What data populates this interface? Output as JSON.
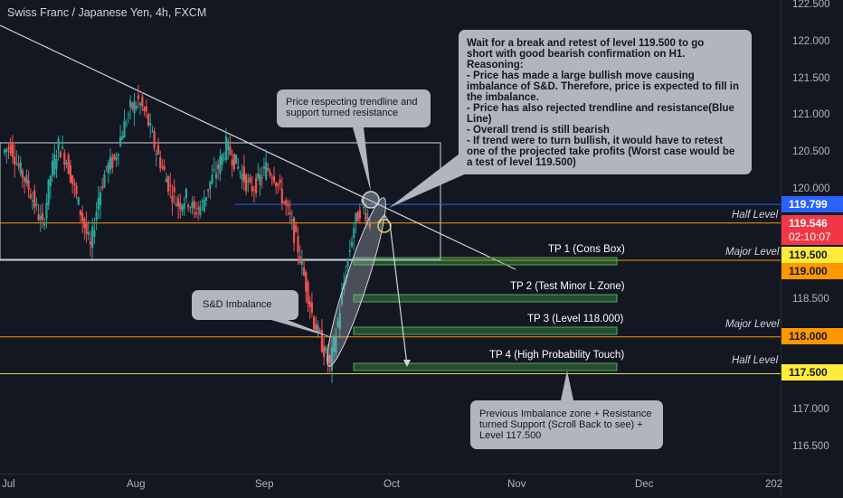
{
  "header": {
    "title": "Swiss Franc / Japanese Yen, 4h, FXCM"
  },
  "colors": {
    "background": "#131722",
    "up": "#26a69a",
    "down": "#ef5350",
    "orange": "#ff9800",
    "yellow": "#ffeb3b",
    "blue": "#2962ff",
    "green_box": "#4caf50"
  },
  "chart_data": {
    "type": "candlestick",
    "price_ticks": [
      "122.500",
      "122.000",
      "121.500",
      "121.000",
      "120.500",
      "120.000",
      "119.500",
      "119.000",
      "118.500",
      "118.000",
      "117.500",
      "117.000",
      "116.500"
    ],
    "time_ticks": [
      "Jul",
      "Aug",
      "Sep",
      "Oct",
      "Nov",
      "Dec",
      "202"
    ],
    "ylim": [
      116.3,
      122.55
    ],
    "x_range": {
      "start": "Jul",
      "end": "202"
    },
    "price_path": [
      120.5,
      120.6,
      120.3,
      120.1,
      119.8,
      119.5,
      120.2,
      120.6,
      120.4,
      120.0,
      119.6,
      119.2,
      119.9,
      120.3,
      120.4,
      120.8,
      121.1,
      121.2,
      121.0,
      120.6,
      120.3,
      120.0,
      119.8,
      119.9,
      119.7,
      119.8,
      120.1,
      120.3,
      120.6,
      120.4,
      120.2,
      120.0,
      120.1,
      120.3,
      120.2,
      119.9,
      119.6,
      119.2,
      118.7,
      118.2,
      117.9,
      117.6,
      118.2,
      118.9,
      119.5,
      119.8,
      119.55
    ],
    "horizontal_levels": [
      {
        "price": 119.799,
        "color": "blue"
      },
      {
        "price": 119.546,
        "color": "orange",
        "label": "Half Level"
      },
      {
        "price": 119.0,
        "color": "white"
      },
      {
        "price": 118.0,
        "color": "orange",
        "label": "Major Level"
      },
      {
        "price": 117.5,
        "color": "yellow",
        "label": "Half Level"
      }
    ],
    "price_badges": [
      {
        "text": "119.799",
        "bg": "#2962ff",
        "fg": "#ffffff"
      },
      {
        "text": "119.546",
        "bg": "#f23645",
        "fg": "#ffffff"
      },
      {
        "text": "02:10:07",
        "bg": "#f23645",
        "fg": "#ffffff"
      },
      {
        "text": "119.500",
        "bg": "#ffeb3b",
        "fg": "#131722"
      },
      {
        "text": "119.000",
        "bg": "#ff9800",
        "fg": "#131722"
      },
      {
        "text": "118.000",
        "bg": "#ff9800",
        "fg": "#131722"
      },
      {
        "text": "117.500",
        "bg": "#ffeb3b",
        "fg": "#131722"
      }
    ],
    "level_labels": [
      "Half Level",
      "Major Level",
      "Major Level",
      "Half Level"
    ],
    "take_profits": [
      "TP 1 (Cons Box)",
      "TP 2 (Test Minor L Zone)",
      "TP 3 (Level 118.000)",
      "TP 4 (High Probability Touch)"
    ],
    "notes": {
      "top_right": [
        "Wait for a break and retest of level 119.500 to go",
        "short with good bearish confirmation on H1.",
        "",
        "Reasoning:",
        "- Price has made a large bullish move causing",
        "imbalance of S&D. Therefore, price is expected to fill in",
        "the imbalance.",
        "- Price has also rejected trendline and resistance(Blue",
        "Line)",
        "- Overall trend is still bearish",
        "- If trend were to turn bullish, it would have to retest",
        "one of the projected take profits (Worst case would be",
        "a test of level 119.500)"
      ],
      "trendline": [
        "Price respecting trendline and",
        "support turned resistance"
      ],
      "imbalance": [
        "S&D Imbalance"
      ],
      "support": [
        "Previous Imbalance zone + Resistance",
        "turned Support (Scroll Back to see) +",
        "Level 117.500"
      ]
    }
  }
}
